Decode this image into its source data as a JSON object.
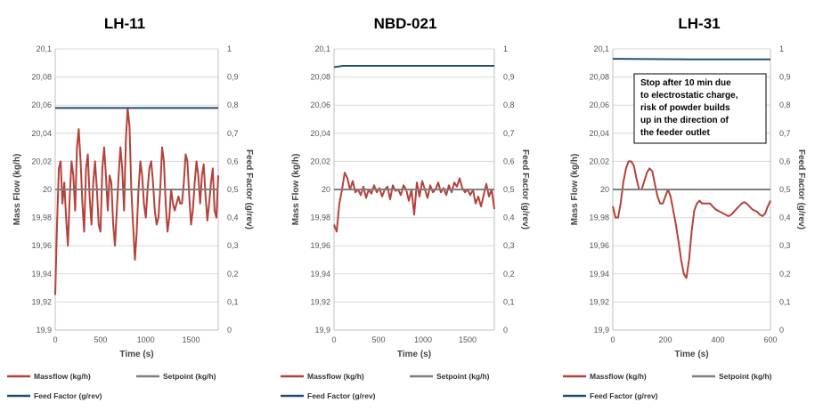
{
  "chart_data": [
    {
      "type": "line",
      "title": "LH-11",
      "xlabel": "Time (s)",
      "ylabel": "Mass Flow (kg/h)",
      "y2label": "Feed Factor (g/rev)",
      "xlim": [
        0,
        1800
      ],
      "xticks": [
        "0",
        "500",
        "1000",
        "1500"
      ],
      "ylim": [
        19.9,
        20.1
      ],
      "yticks": [
        "19,9",
        "19,92",
        "19,94",
        "19,96",
        "19,98",
        "20",
        "20,02",
        "20,04",
        "20,06",
        "20,08",
        "20,1"
      ],
      "y2lim": [
        0,
        1
      ],
      "y2ticks": [
        "0",
        "0,1",
        "0,2",
        "0,3",
        "0,4",
        "0,5",
        "0,6",
        "0,7",
        "0,8",
        "0,9",
        "1"
      ],
      "grid": true,
      "legend_position": "bottom",
      "series": [
        {
          "name": "Massflow (kg/h)",
          "color": "#b5413a",
          "axis": "left",
          "x": [
            0,
            20,
            40,
            60,
            80,
            100,
            120,
            140,
            160,
            180,
            200,
            220,
            240,
            260,
            280,
            300,
            320,
            340,
            360,
            380,
            400,
            420,
            440,
            460,
            480,
            500,
            520,
            540,
            560,
            580,
            600,
            620,
            640,
            660,
            680,
            700,
            720,
            740,
            760,
            780,
            800,
            820,
            840,
            860,
            880,
            900,
            920,
            940,
            960,
            980,
            1000,
            1020,
            1040,
            1060,
            1080,
            1100,
            1120,
            1140,
            1160,
            1180,
            1200,
            1220,
            1240,
            1260,
            1280,
            1300,
            1320,
            1340,
            1360,
            1380,
            1400,
            1420,
            1440,
            1460,
            1480,
            1500,
            1520,
            1540,
            1560,
            1580,
            1600,
            1620,
            1640,
            1660,
            1680,
            1700,
            1720,
            1740,
            1760,
            1780,
            1800
          ],
          "values": [
            19.925,
            19.975,
            20.015,
            20.02,
            19.99,
            20.005,
            19.98,
            19.96,
            19.995,
            20.02,
            20.01,
            19.985,
            20.03,
            20.043,
            20.02,
            19.99,
            19.97,
            20.015,
            20.025,
            19.995,
            19.975,
            20.005,
            20.02,
            20.0,
            19.975,
            19.97,
            20.015,
            20.03,
            20.01,
            19.985,
            20.01,
            20.005,
            19.975,
            19.96,
            19.985,
            20.01,
            20.03,
            20.015,
            19.985,
            20.035,
            20.058,
            20.045,
            20.0,
            19.975,
            19.95,
            19.97,
            20.0,
            20.02,
            20.01,
            19.99,
            19.98,
            20.0,
            20.015,
            20.02,
            20.005,
            19.985,
            19.975,
            19.98,
            20.0,
            20.03,
            20.02,
            19.99,
            19.97,
            19.98,
            20.0,
            19.99,
            19.985,
            19.99,
            19.995,
            19.99,
            19.99,
            20.005,
            20.025,
            20.02,
            19.995,
            19.975,
            19.985,
            20.005,
            20.02,
            20.01,
            19.99,
            20.01,
            20.018,
            19.995,
            19.978,
            19.99,
            20.005,
            20.015,
            19.985,
            19.98,
            20.01
          ]
        },
        {
          "name": "Setpoint (kg/h)",
          "color": "#7f7f7f",
          "axis": "left",
          "x": [
            0,
            1800
          ],
          "values": [
            20,
            20
          ]
        },
        {
          "name": "Feed Factor (g/rev)",
          "color": "#1f4e79",
          "axis": "right",
          "x": [
            0,
            1800
          ],
          "values": [
            0.79,
            0.79
          ]
        }
      ]
    },
    {
      "type": "line",
      "title": "NBD-021",
      "xlabel": "Time (s)",
      "ylabel": "Mass Flow (kg/h)",
      "y2label": "Feed Factor (g/rev)",
      "xlim": [
        0,
        1800
      ],
      "xticks": [
        "0",
        "500",
        "1000",
        "1500"
      ],
      "ylim": [
        19.9,
        20.1
      ],
      "yticks": [
        "19,9",
        "19,92",
        "19,94",
        "19,96",
        "19,98",
        "20",
        "20,02",
        "20,04",
        "20,06",
        "20,08",
        "20,1"
      ],
      "y2lim": [
        0,
        1
      ],
      "y2ticks": [
        "0",
        "0,1",
        "0,2",
        "0,3",
        "0,4",
        "0,5",
        "0,6",
        "0,7",
        "0,8",
        "0,9",
        "1"
      ],
      "grid": true,
      "legend_position": "bottom",
      "series": [
        {
          "name": "Massflow (kg/h)",
          "color": "#b5413a",
          "axis": "left",
          "x": [
            0,
            30,
            60,
            90,
            120,
            150,
            180,
            210,
            240,
            270,
            300,
            330,
            360,
            390,
            420,
            450,
            480,
            510,
            540,
            570,
            600,
            630,
            660,
            690,
            720,
            750,
            780,
            810,
            840,
            870,
            900,
            930,
            960,
            990,
            1020,
            1050,
            1080,
            1110,
            1140,
            1170,
            1200,
            1230,
            1260,
            1290,
            1320,
            1350,
            1380,
            1410,
            1440,
            1470,
            1500,
            1530,
            1560,
            1590,
            1620,
            1650,
            1680,
            1710,
            1740,
            1770,
            1800
          ],
          "values": [
            19.975,
            19.97,
            19.99,
            20.0,
            20.012,
            20.008,
            20.0,
            20.006,
            19.998,
            20.0,
            19.996,
            20.002,
            19.994,
            20.0,
            19.997,
            20.003,
            19.998,
            20.001,
            19.995,
            20.0,
            20.002,
            19.993,
            20.003,
            19.999,
            20.0,
            19.996,
            20.003,
            20.0,
            19.992,
            20.0,
            19.982,
            20.005,
            19.995,
            20.006,
            20.0,
            19.994,
            20.003,
            19.998,
            20.0,
            20.005,
            19.998,
            20.001,
            19.996,
            20.003,
            19.998,
            20.005,
            20.002,
            20.008,
            20.001,
            19.998,
            20.0,
            19.996,
            20.0,
            19.99,
            19.995,
            19.988,
            19.996,
            20.004,
            19.995,
            20.0,
            19.986
          ]
        },
        {
          "name": "Setpoint (kg/h)",
          "color": "#7f7f7f",
          "axis": "left",
          "x": [
            0,
            1800
          ],
          "values": [
            20,
            20
          ]
        },
        {
          "name": "Feed Factor (g/rev)",
          "color": "#1f4e79",
          "axis": "right",
          "x": [
            0,
            100,
            1800
          ],
          "values": [
            0.935,
            0.94,
            0.94
          ]
        }
      ]
    },
    {
      "type": "line",
      "title": "LH-31",
      "xlabel": "Time (s)",
      "ylabel": "Mass Flow (kg/h)",
      "y2label": "Feed Factor (g/rev)",
      "xlim": [
        0,
        600
      ],
      "xticks": [
        "0",
        "200",
        "400",
        "600"
      ],
      "ylim": [
        19.9,
        20.1
      ],
      "yticks": [
        "19,9",
        "19,92",
        "19,94",
        "19,96",
        "19,98",
        "20",
        "20,02",
        "20,04",
        "20,06",
        "20,08",
        "20,1"
      ],
      "y2lim": [
        0,
        1
      ],
      "y2ticks": [
        "0",
        "0,1",
        "0,2",
        "0,3",
        "0,4",
        "0,5",
        "0,6",
        "0,7",
        "0,8",
        "0,9",
        "1"
      ],
      "grid": true,
      "legend_position": "bottom",
      "annotation": [
        "Stop after 10 min due",
        "to electrostatic charge,",
        "risk of powder builds",
        "up in the direction of",
        "the feeder outlet"
      ],
      "series": [
        {
          "name": "Massflow (kg/h)",
          "color": "#b5413a",
          "axis": "left",
          "x": [
            0,
            10,
            20,
            30,
            40,
            50,
            60,
            70,
            80,
            90,
            100,
            110,
            120,
            130,
            140,
            150,
            160,
            170,
            180,
            190,
            200,
            210,
            220,
            230,
            240,
            250,
            260,
            270,
            280,
            290,
            300,
            310,
            320,
            330,
            340,
            350,
            360,
            370,
            380,
            390,
            400,
            410,
            420,
            430,
            440,
            450,
            460,
            470,
            480,
            490,
            500,
            510,
            520,
            530,
            540,
            550,
            560,
            570,
            580,
            590,
            600
          ],
          "values": [
            19.988,
            19.98,
            19.98,
            19.99,
            20.005,
            20.015,
            20.02,
            20.02,
            20.017,
            20.008,
            20.0,
            20.0,
            20.006,
            20.012,
            20.015,
            20.013,
            20.004,
            19.995,
            19.99,
            19.99,
            19.995,
            20.0,
            19.995,
            19.985,
            19.975,
            19.963,
            19.95,
            19.94,
            19.937,
            19.95,
            19.97,
            19.985,
            19.99,
            19.992,
            19.99,
            19.99,
            19.99,
            19.99,
            19.988,
            19.986,
            19.985,
            19.984,
            19.983,
            19.982,
            19.981,
            19.982,
            19.984,
            19.986,
            19.988,
            19.99,
            19.991,
            19.99,
            19.988,
            19.986,
            19.985,
            19.984,
            19.982,
            19.981,
            19.983,
            19.988,
            19.992
          ]
        },
        {
          "name": "Setpoint (kg/h)",
          "color": "#7f7f7f",
          "axis": "left",
          "x": [
            0,
            600
          ],
          "values": [
            20,
            20
          ]
        },
        {
          "name": "Feed Factor (g/rev)",
          "color": "#1f4e79",
          "axis": "right",
          "x": [
            0,
            300,
            600
          ],
          "values": [
            0.965,
            0.963,
            0.963
          ]
        }
      ]
    }
  ]
}
